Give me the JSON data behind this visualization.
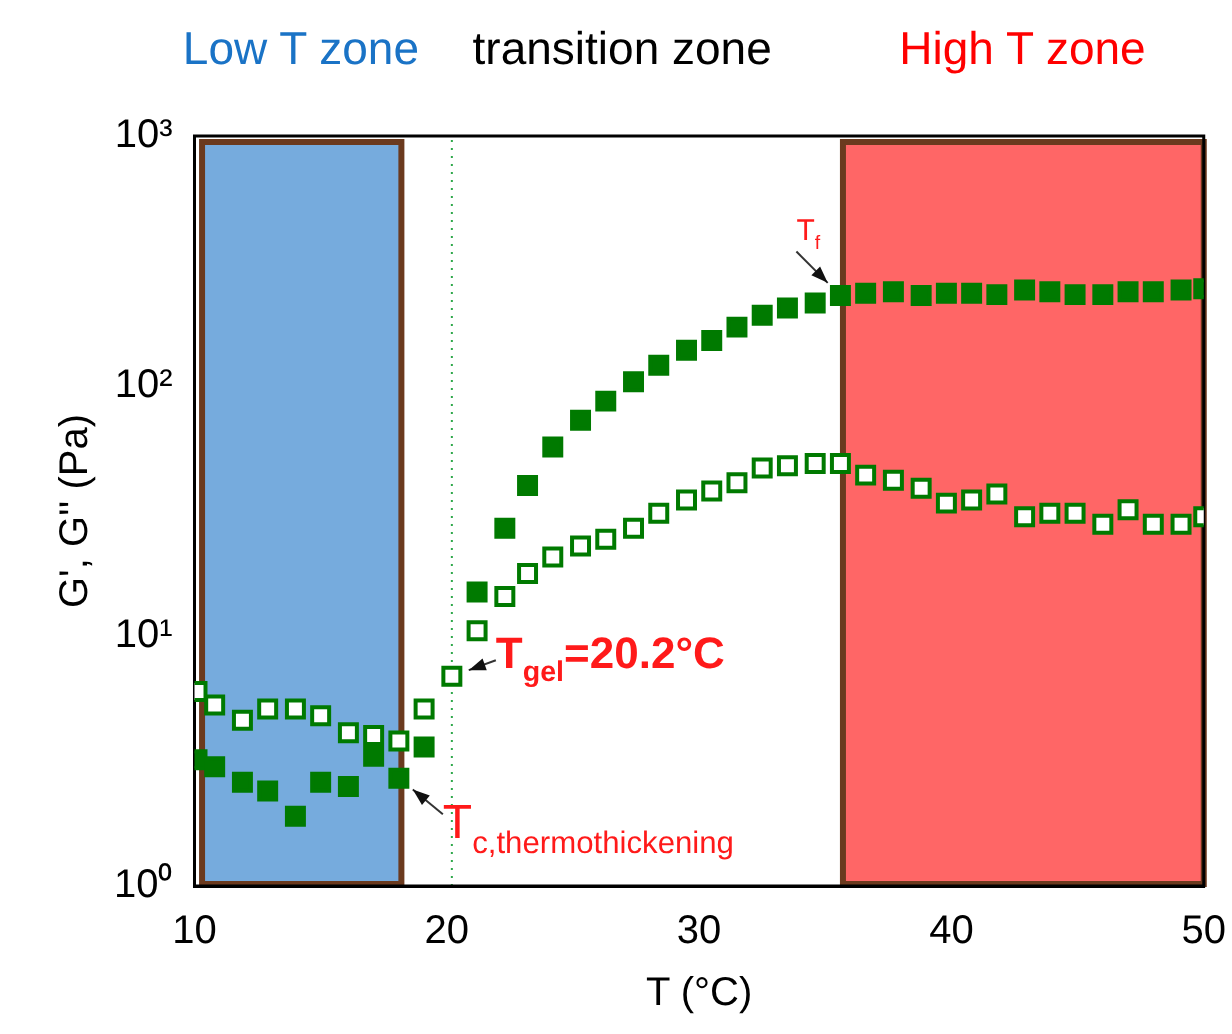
{
  "chart_data": {
    "type": "scatter",
    "xlabel": "T (°C)",
    "ylabel": "G', G'' (Pa)",
    "x": [
      10.1,
      10.8,
      11.9,
      12.9,
      14.0,
      15.0,
      16.1,
      17.1,
      18.1,
      19.1,
      20.2,
      21.2,
      22.3,
      23.2,
      24.2,
      25.3,
      26.3,
      27.4,
      28.4,
      29.5,
      30.5,
      31.5,
      32.5,
      33.5,
      34.6,
      35.6,
      36.6,
      37.7,
      38.8,
      39.8,
      40.8,
      41.8,
      42.9,
      43.9,
      44.9,
      46.0,
      47.0,
      48.0,
      49.1,
      50.0
    ],
    "series": [
      {
        "color": "#007a00",
        "values": [
          3.2,
          3.0,
          2.6,
          2.4,
          1.9,
          2.6,
          2.5,
          3.3,
          2.7,
          3.6,
          null,
          15,
          27,
          40,
          57,
          73,
          87,
          104,
          121,
          139,
          152,
          172,
          192,
          205,
          215,
          230,
          235,
          238,
          230,
          235,
          235,
          232,
          242,
          238,
          232,
          232,
          238,
          238,
          242,
          245
        ]
      },
      {
        "color": "#007a00",
        "values": [
          6.0,
          5.3,
          4.6,
          5.1,
          5.1,
          4.8,
          4.1,
          4.0,
          3.8,
          5.1,
          6.9,
          10.5,
          14.4,
          17.8,
          20.7,
          22.9,
          24.4,
          27,
          31,
          35,
          38,
          41,
          47,
          48,
          49,
          49,
          44,
          42,
          39,
          34,
          35,
          37,
          30,
          31,
          31,
          28,
          32,
          28,
          28,
          30
        ]
      }
    ],
    "marker": "square",
    "log": "y",
    "grid": false,
    "xlim": [
      10,
      50
    ],
    "xticks": [
      10,
      20,
      30,
      40,
      50
    ],
    "ylim": [
      1,
      1000
    ],
    "yticks": [
      {
        "value": 1,
        "label": "10⁰"
      },
      {
        "value": 10,
        "label": "10¹"
      },
      {
        "value": 100,
        "label": "10²"
      },
      {
        "value": 1000,
        "label": "10³"
      }
    ],
    "bands": [
      {
        "axis": "x",
        "from": 10.3,
        "to": 18.2,
        "label": "Low T zone",
        "color": "#1a73c6"
      },
      {
        "axis": "x",
        "from": 35.7,
        "to": 50,
        "label": "High T zone",
        "color": "#ff0000"
      }
    ],
    "ref_lines": [
      {
        "axis": "x",
        "value": 20.2,
        "color": "#2ea84a",
        "line_style": "dotted"
      }
    ],
    "annotations": [
      "transition zone",
      {
        "text": "T$_{f}$",
        "x": 35.6,
        "y": 230
      },
      {
        "text": "T$_{gel}$=20.2°C",
        "x": 20.2,
        "y": 6.9
      },
      {
        "text": "T$_{c,thermothickening}$",
        "x": 18.1,
        "y": 2.7
      }
    ]
  }
}
